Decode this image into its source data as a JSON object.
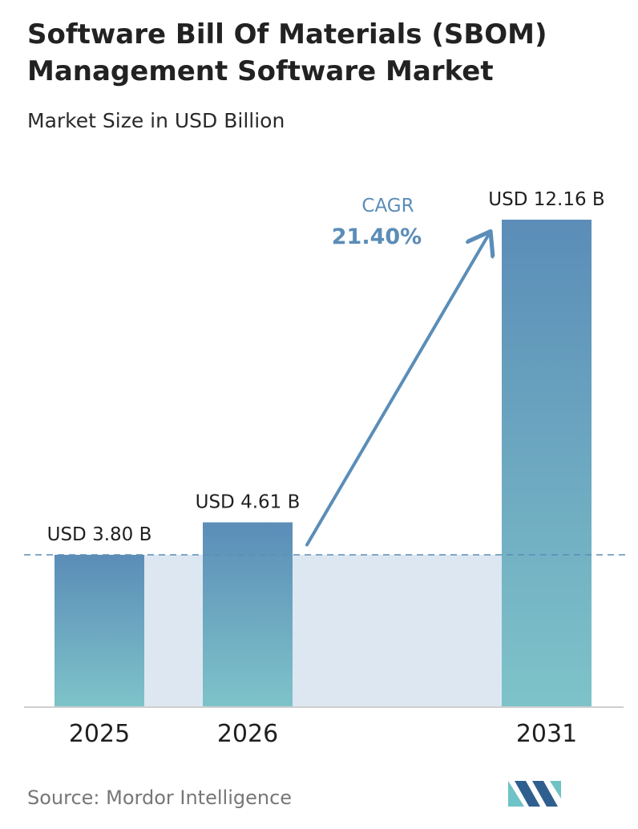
{
  "header": {
    "title": "Software Bill Of Materials (SBOM) Management Software Market",
    "subtitle": "Market Size in USD Billion"
  },
  "chart_data": {
    "type": "bar",
    "categories": [
      "2025",
      "2026",
      "2031"
    ],
    "values": [
      3.8,
      4.61,
      12.16
    ],
    "value_labels": [
      "USD 3.80 B",
      "USD 4.61 B",
      "USD 12.16 B"
    ],
    "ylim": [
      0,
      12.16
    ],
    "grid": false,
    "reference_line": 3.8,
    "annotation": {
      "label": "CAGR",
      "value": "21.40%"
    }
  },
  "footer": {
    "source": "Source: Mordor Intelligence"
  },
  "colors": {
    "bar_top": "#5b8db8",
    "bar_bottom": "#7ec3c9",
    "shade": "#dde7f1",
    "arrow": "#5b8db8",
    "baseline": "#cfcfcf",
    "logo_dark": "#2f5f8f",
    "logo_light": "#6fc2c6"
  }
}
